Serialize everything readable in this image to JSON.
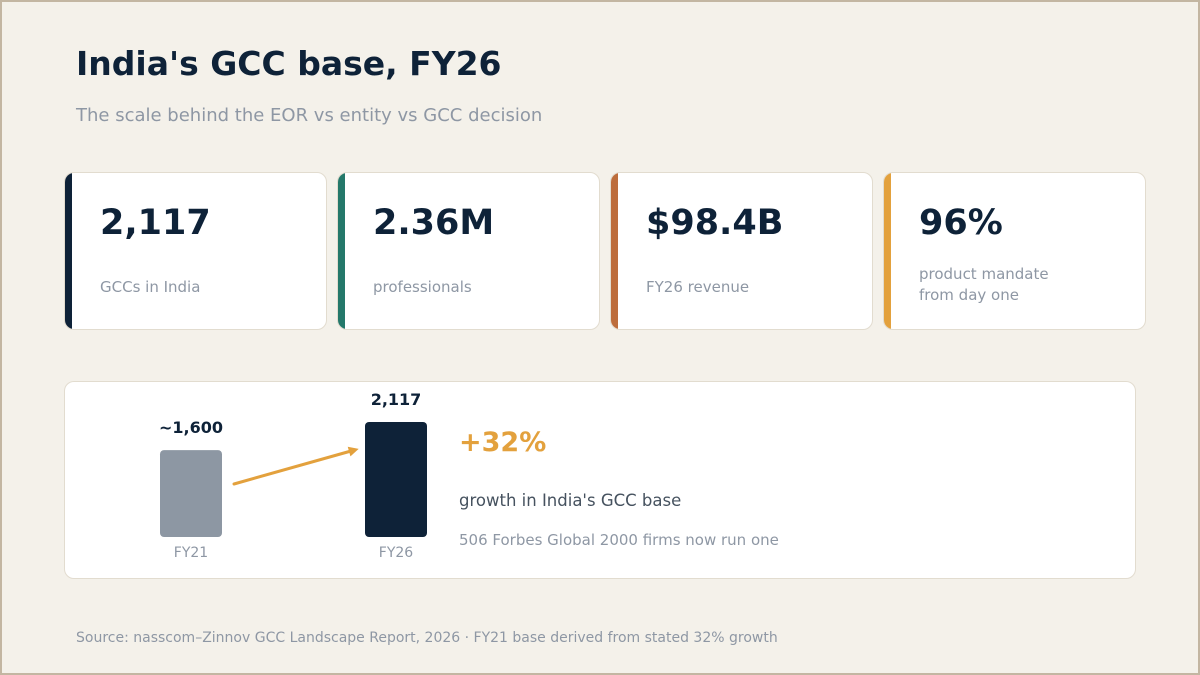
{
  "header": {
    "title": "India's GCC base, FY26",
    "subtitle": "The scale behind the EOR vs entity vs GCC decision"
  },
  "stats": [
    {
      "value": "2,117",
      "label": "GCCs in India",
      "accent": "#0e2238"
    },
    {
      "value": "2.36M",
      "label": "professionals",
      "accent": "#24786a"
    },
    {
      "value": "$98.4B",
      "label": "FY26 revenue",
      "accent": "#bd6d3c"
    },
    {
      "value": "96%",
      "label_lines": [
        "product mandate",
        "from day one"
      ],
      "accent": "#e3a13d"
    }
  ],
  "growth": {
    "percent": "+32%",
    "text": "growth in India's GCC base",
    "note": "506 Forbes Global 2000 firms now run one"
  },
  "chart_data": {
    "type": "bar",
    "categories": [
      "FY21",
      "FY26"
    ],
    "values": [
      1600,
      2117
    ],
    "value_labels": [
      "~1,600",
      "2,117"
    ],
    "colors": [
      "#8d97a3",
      "#0e2238"
    ],
    "arrow_color": "#e3a13d"
  },
  "source": "Source: nasscom–Zinnov GCC Landscape Report, 2026 · FY21 base derived from stated 32% growth",
  "colors": {
    "background": "#f4f1ea",
    "navy": "#0e2238",
    "orange": "#e3a13d",
    "muted": "#8e97a4"
  }
}
